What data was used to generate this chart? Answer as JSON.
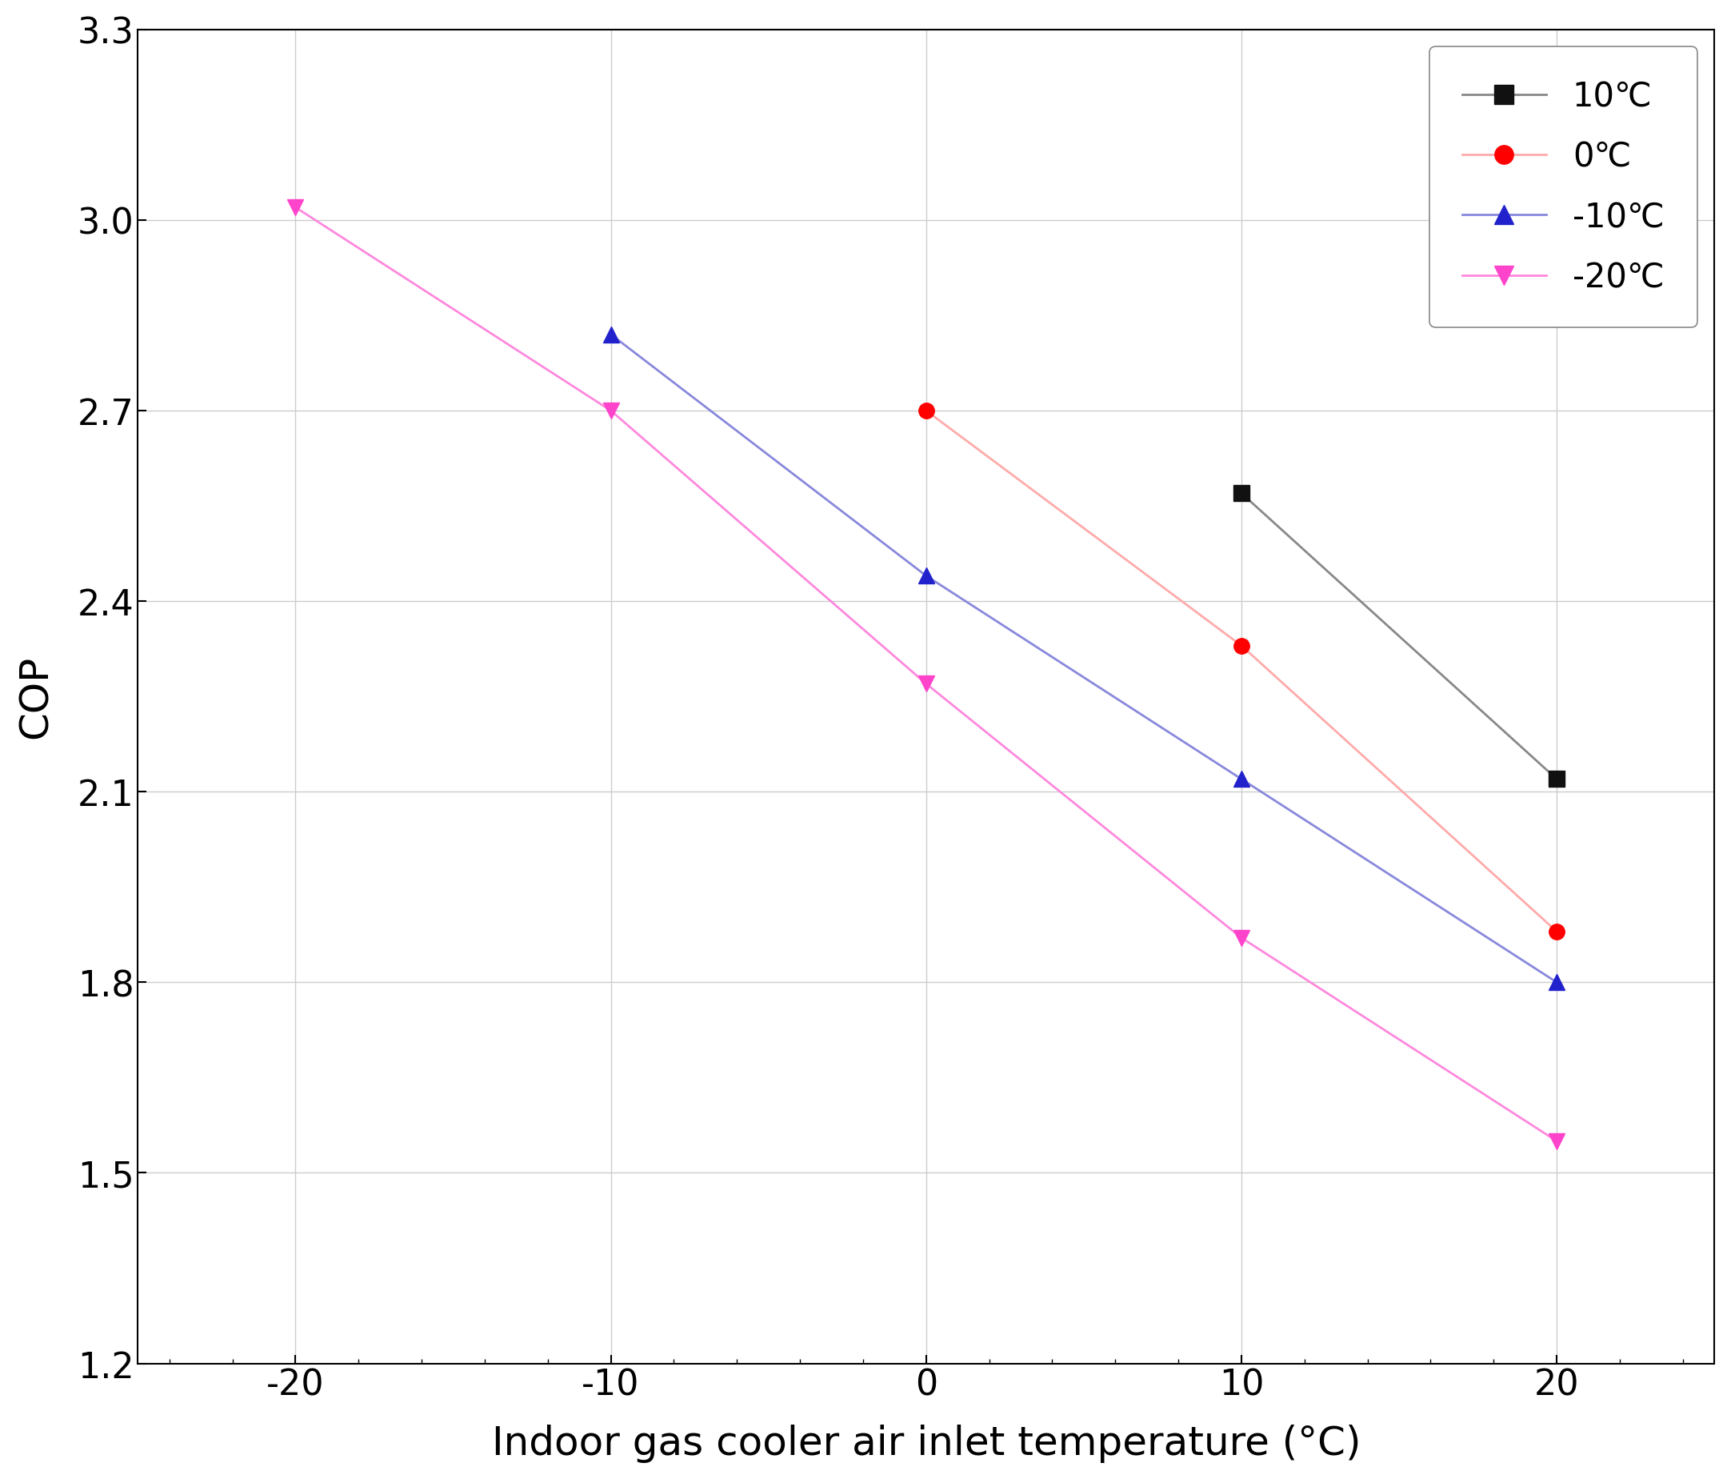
{
  "series": [
    {
      "label": "10℃",
      "x": [
        10,
        20
      ],
      "y": [
        2.57,
        2.12
      ],
      "line_color": "#888888",
      "marker_color": "#111111",
      "marker": "s",
      "marker_size": 14,
      "linewidth": 2.0
    },
    {
      "label": "0℃",
      "x": [
        0,
        10,
        20
      ],
      "y": [
        2.7,
        2.33,
        1.88
      ],
      "line_color": "#ffaaaa",
      "marker_color": "#ff0000",
      "marker": "o",
      "marker_size": 14,
      "linewidth": 2.0
    },
    {
      "label": "-10℃",
      "x": [
        -10,
        0,
        10,
        20
      ],
      "y": [
        2.82,
        2.44,
        2.12,
        1.8
      ],
      "line_color": "#8888dd",
      "marker_color": "#2222cc",
      "marker": "^",
      "marker_size": 14,
      "linewidth": 2.0
    },
    {
      "label": "-20℃",
      "x": [
        -20,
        -10,
        0,
        10,
        20
      ],
      "y": [
        3.02,
        2.7,
        2.27,
        1.87,
        1.55
      ],
      "line_color": "#ff88dd",
      "marker_color": "#ff44cc",
      "marker": "v",
      "marker_size": 14,
      "linewidth": 2.0
    }
  ],
  "xlabel": "Indoor gas cooler air inlet temperature (°C)",
  "ylabel": "COP",
  "xlim": [
    -25,
    25
  ],
  "ylim": [
    1.2,
    3.3
  ],
  "xticks": [
    -20,
    -10,
    0,
    10,
    20
  ],
  "yticks": [
    1.2,
    1.5,
    1.8,
    2.1,
    2.4,
    2.7,
    3.0,
    3.3
  ],
  "grid": true,
  "legend_loc": "upper right",
  "background_color": "#ffffff",
  "label_fontsize": 36,
  "tick_fontsize": 32,
  "legend_fontsize": 30
}
